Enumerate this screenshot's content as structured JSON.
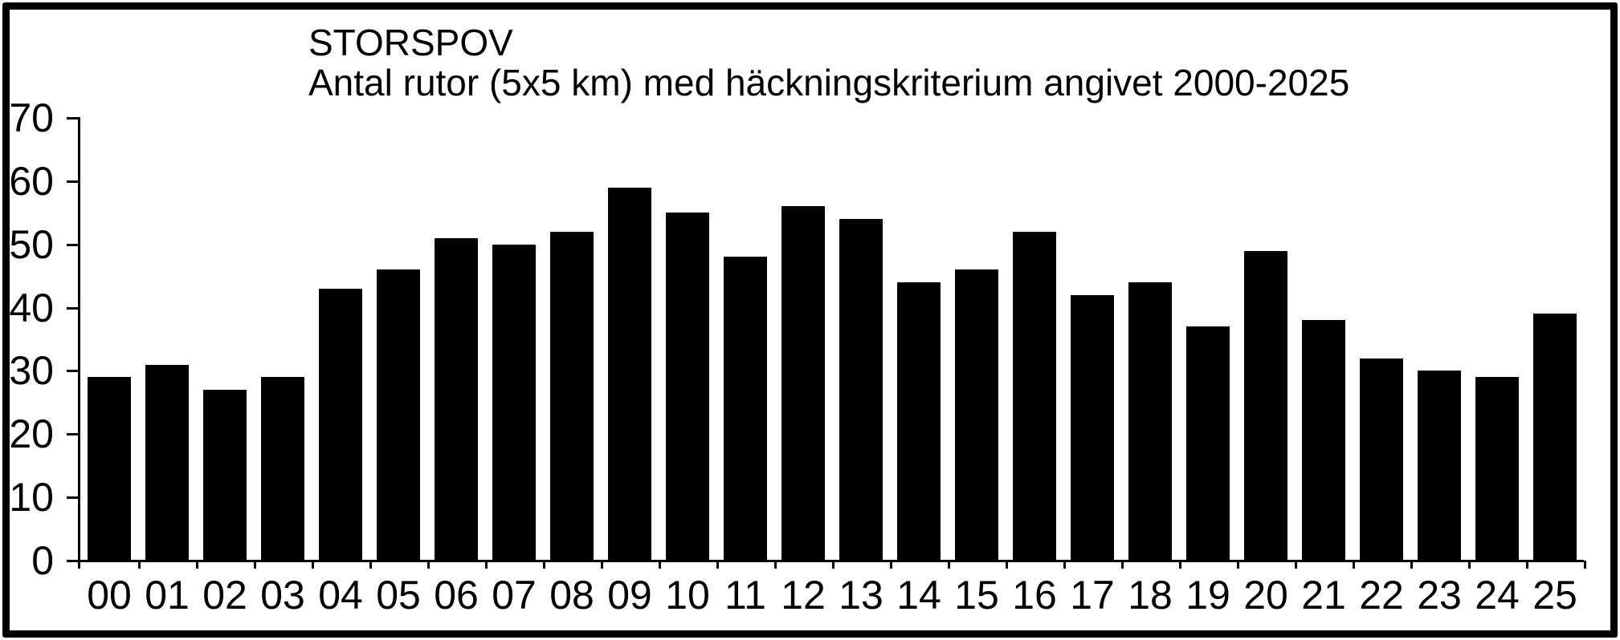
{
  "chart_data": {
    "type": "bar",
    "title": "STORSPOV",
    "subtitle": "Antal rutor (5x5 km) med häckningskriterium angivet 2000-2025",
    "categories": [
      "00",
      "01",
      "02",
      "03",
      "04",
      "05",
      "06",
      "07",
      "08",
      "09",
      "10",
      "11",
      "12",
      "13",
      "14",
      "15",
      "16",
      "17",
      "18",
      "19",
      "20",
      "21",
      "22",
      "23",
      "24",
      "25"
    ],
    "values": [
      29,
      31,
      27,
      29,
      43,
      46,
      51,
      50,
      52,
      59,
      55,
      48,
      56,
      54,
      44,
      46,
      52,
      42,
      44,
      37,
      49,
      38,
      32,
      30,
      29,
      39
    ],
    "xlabel": "",
    "ylabel": "",
    "ylim": [
      0,
      70
    ],
    "yticks": [
      0,
      10,
      20,
      30,
      40,
      50,
      60,
      70
    ],
    "grid": false,
    "legend_position": "none",
    "bar_color": "#000000",
    "background_color": "#ffffff",
    "frame_color": "#000000"
  }
}
